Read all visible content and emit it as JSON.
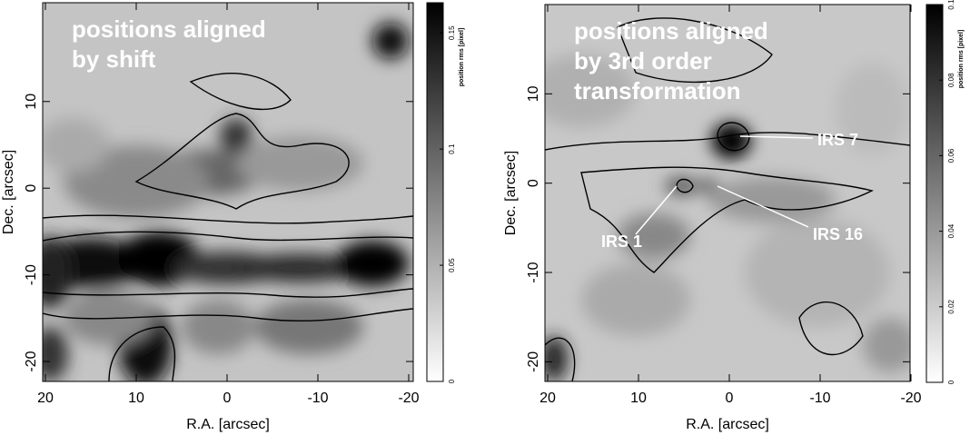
{
  "chart_data": [
    {
      "type": "contour",
      "title_lines": [
        "positions aligned",
        "by shift"
      ],
      "xlabel": "R.A. [arcsec]",
      "ylabel": "Dec. [arcsec]",
      "xlim": [
        20.3,
        -20.5
      ],
      "xticks": [
        20,
        10,
        0,
        -10,
        -20
      ],
      "ylim": [
        -22.3,
        21.4
      ],
      "yticks": [
        -20,
        -10,
        0,
        10
      ],
      "colorbar_label": "position rms [pixel]",
      "clim": [
        0,
        0.163
      ],
      "cticks": [
        0,
        0.05,
        0.1,
        0.15
      ]
    },
    {
      "type": "contour",
      "title_lines": [
        "positions aligned",
        "by 3rd order",
        "transformation"
      ],
      "xlabel": "R.A. [arcsec]",
      "ylabel": "Dec. [arcsec]",
      "xlim": [
        20.3,
        -19.9
      ],
      "xticks": [
        20,
        10,
        0,
        -10,
        -20
      ],
      "ylim": [
        -22.2,
        20
      ],
      "yticks": [
        -20,
        -10,
        0,
        10
      ],
      "colorbar_label": "position rms [pixel]",
      "clim": [
        0,
        0.1
      ],
      "cticks": [
        0,
        0.02,
        0.04,
        0.06,
        0.08,
        0.1
      ],
      "annotations": [
        "IRS 7",
        "IRS 1",
        "IRS 16"
      ]
    }
  ]
}
